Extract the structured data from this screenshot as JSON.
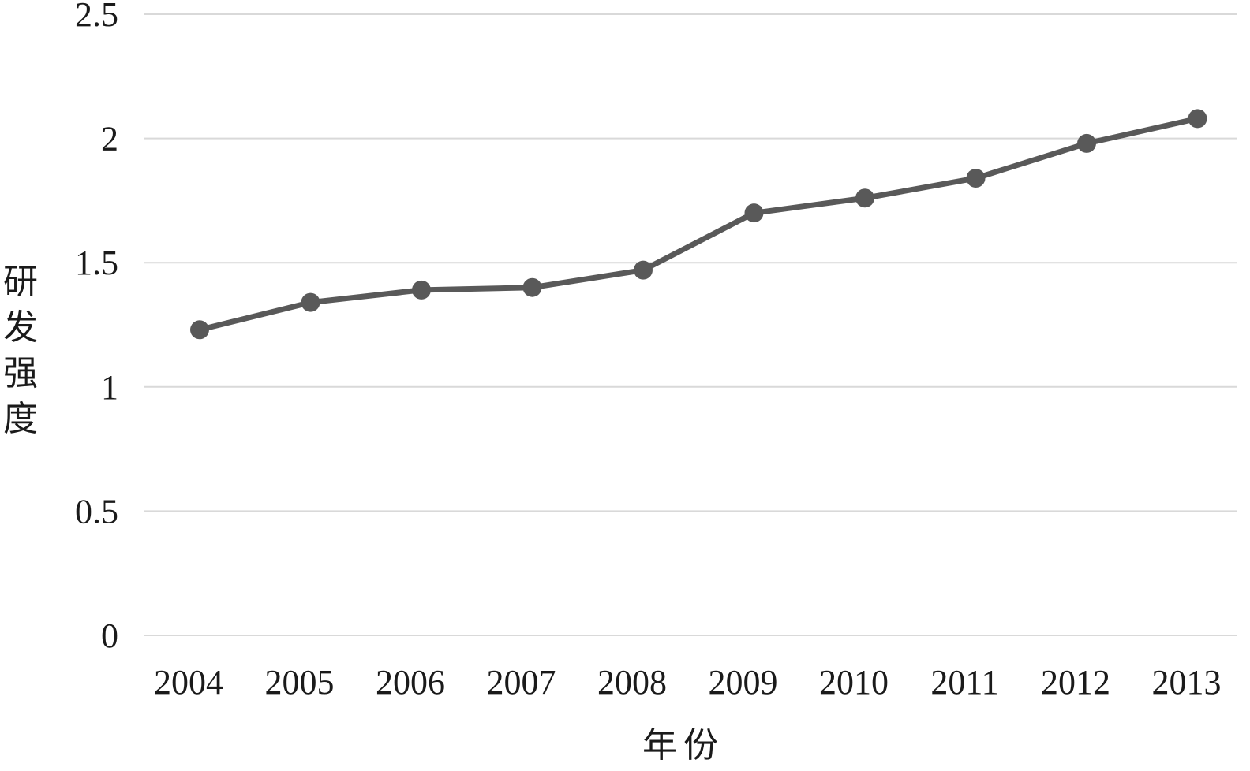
{
  "chart_data": {
    "type": "line",
    "title": "",
    "xlabel": "年份",
    "ylabel": "研发强度",
    "categories": [
      "2004",
      "2005",
      "2006",
      "2007",
      "2008",
      "2009",
      "2010",
      "2011",
      "2012",
      "2013"
    ],
    "series": [
      {
        "values": [
          1.23,
          1.34,
          1.39,
          1.4,
          1.47,
          1.7,
          1.76,
          1.84,
          1.98,
          2.08
        ]
      }
    ],
    "yticks": [
      "0",
      "0.5",
      "1",
      "1.5",
      "2",
      "2.5"
    ],
    "ylim": [
      0,
      2.5
    ],
    "grid": true,
    "legend": "none",
    "colors": {
      "line": "#595959",
      "grid": "#d9d9d9",
      "text": "#1a1a1a"
    }
  }
}
